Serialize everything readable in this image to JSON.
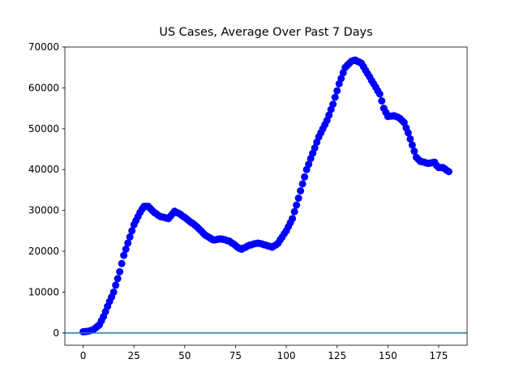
{
  "chart_data": {
    "type": "scatter",
    "title": "US Cases, Average Over Past 7 Days",
    "x": [
      0,
      1,
      2,
      3,
      4,
      5,
      6,
      7,
      8,
      9,
      10,
      11,
      12,
      13,
      14,
      15,
      16,
      17,
      18,
      19,
      20,
      21,
      22,
      23,
      24,
      25,
      26,
      27,
      28,
      29,
      30,
      31,
      32,
      33,
      34,
      35,
      36,
      37,
      38,
      39,
      40,
      41,
      42,
      43,
      44,
      45,
      46,
      47,
      48,
      49,
      50,
      51,
      52,
      53,
      54,
      55,
      56,
      57,
      58,
      59,
      60,
      61,
      62,
      63,
      64,
      65,
      66,
      67,
      68,
      69,
      70,
      71,
      72,
      73,
      74,
      75,
      76,
      77,
      78,
      79,
      80,
      81,
      82,
      83,
      84,
      85,
      86,
      87,
      88,
      89,
      90,
      91,
      92,
      93,
      94,
      95,
      96,
      97,
      98,
      99,
      100,
      101,
      102,
      103,
      104,
      105,
      106,
      107,
      108,
      109,
      110,
      111,
      112,
      113,
      114,
      115,
      116,
      117,
      118,
      119,
      120,
      121,
      122,
      123,
      124,
      125,
      126,
      127,
      128,
      129,
      130,
      131,
      132,
      133,
      134,
      135,
      136,
      137,
      138,
      139,
      140,
      141,
      142,
      143,
      144,
      145,
      146,
      147,
      148,
      149,
      150,
      151,
      152,
      153,
      154,
      155,
      156,
      157,
      158,
      159,
      160,
      161,
      162,
      163,
      164,
      165,
      166,
      167,
      168,
      169,
      170,
      171,
      172,
      173,
      174,
      175,
      176,
      177,
      178,
      179,
      180
    ],
    "values": [
      300,
      350,
      400,
      500,
      650,
      800,
      1200,
      1600,
      2000,
      3000,
      4000,
      5200,
      6500,
      7700,
      8800,
      10000,
      11700,
      13300,
      15000,
      17000,
      19000,
      20500,
      22000,
      23500,
      25000,
      26500,
      27500,
      28500,
      29500,
      30300,
      31000,
      31000,
      31000,
      30500,
      30000,
      29500,
      29200,
      28800,
      28500,
      28400,
      28300,
      28100,
      28000,
      28600,
      29200,
      29800,
      29500,
      29300,
      29000,
      28600,
      28300,
      27900,
      27500,
      27100,
      26800,
      26400,
      26000,
      25500,
      25000,
      24500,
      24000,
      23700,
      23400,
      23100,
      22800,
      22800,
      22900,
      23000,
      23000,
      22900,
      22800,
      22600,
      22500,
      22100,
      21800,
      21400,
      21000,
      20700,
      20500,
      20800,
      21000,
      21300,
      21500,
      21600,
      21800,
      21900,
      22000,
      21900,
      21800,
      21600,
      21500,
      21300,
      21200,
      21000,
      21300,
      21600,
      22000,
      22800,
      23500,
      24300,
      25000,
      26000,
      27000,
      28000,
      29700,
      31300,
      33000,
      34800,
      36500,
      38200,
      40000,
      41300,
      42700,
      44000,
      45300,
      46700,
      48000,
      49000,
      50000,
      51000,
      52000,
      53300,
      54700,
      56000,
      57700,
      59300,
      61000,
      62300,
      63700,
      65000,
      65500,
      66000,
      66500,
      66700,
      66800,
      66500,
      66300,
      66000,
      65200,
      64300,
      63500,
      62700,
      61800,
      61000,
      60200,
      59300,
      58500,
      56800,
      55000,
      54000,
      53000,
      53100,
      53100,
      53200,
      53000,
      52800,
      52500,
      52000,
      51500,
      50200,
      49000,
      47500,
      46000,
      44500,
      43000,
      42500,
      42000,
      41900,
      41800,
      41600,
      41500,
      41600,
      41700,
      41800,
      41000,
      40500,
      40500,
      40500,
      40200,
      39800,
      39500
    ],
    "color": "#0000ff",
    "hline": 0,
    "hline_color": "#1f77b4",
    "xlim": [
      -9,
      189
    ],
    "xticks": [
      0,
      25,
      50,
      75,
      100,
      125,
      150,
      175
    ],
    "ylim": [
      -3000,
      70000
    ],
    "yticks": [
      0,
      10000,
      20000,
      30000,
      40000,
      50000,
      60000,
      70000
    ]
  }
}
